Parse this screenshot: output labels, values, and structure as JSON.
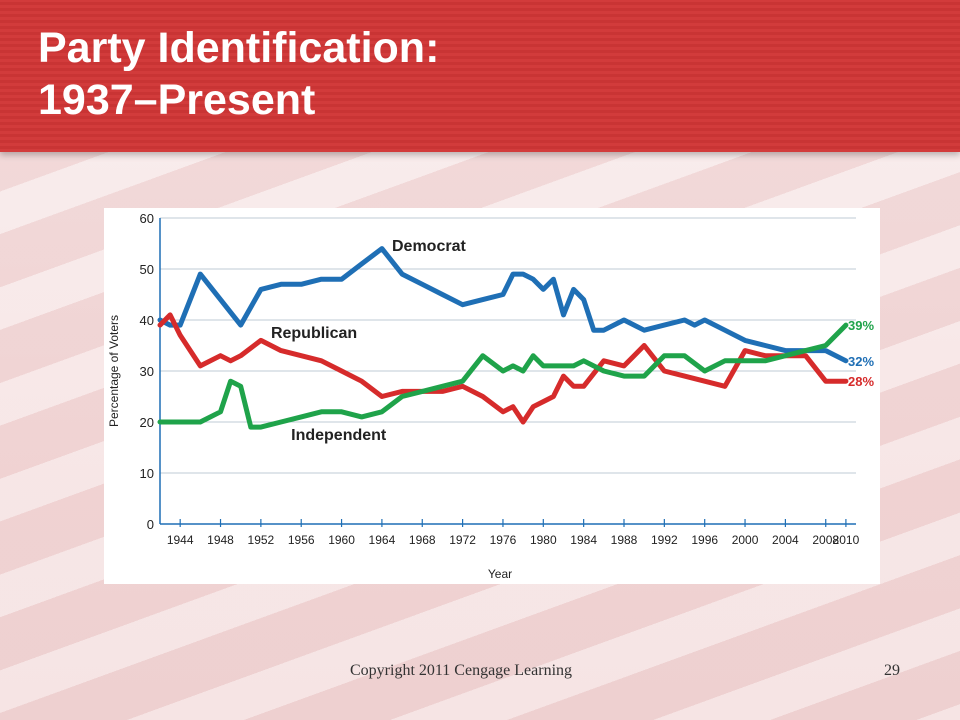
{
  "slide": {
    "title_line1": "Party Identification:",
    "title_line2": "1937–Present",
    "copyright": "Copyright 2011 Cengage Learning",
    "page_number": "29",
    "header_color": "#cc3636"
  },
  "chart_data": {
    "type": "line",
    "title": "",
    "xlabel": "Year",
    "ylabel": "Percentage of Voters",
    "xlim": [
      1942,
      2011
    ],
    "ylim": [
      0,
      60
    ],
    "x_ticks": [
      "1944",
      "1948",
      "1952",
      "1956",
      "1960",
      "1964",
      "1968",
      "1972",
      "1976",
      "1980",
      "1984",
      "1988",
      "1992",
      "1996",
      "2000",
      "2004",
      "2008",
      "2010"
    ],
    "y_ticks": [
      0,
      10,
      20,
      30,
      40,
      50,
      60
    ],
    "grid": true,
    "series": [
      {
        "name": "Democrat",
        "color": "#1f6fb5",
        "end_label": "32%",
        "x": [
          1942,
          1943,
          1944,
          1946,
          1948,
          1950,
          1952,
          1954,
          1956,
          1958,
          1960,
          1962,
          1964,
          1966,
          1968,
          1970,
          1972,
          1974,
          1976,
          1977,
          1978,
          1979,
          1980,
          1981,
          1982,
          1983,
          1984,
          1985,
          1986,
          1988,
          1990,
          1992,
          1994,
          1995,
          1996,
          1998,
          2000,
          2002,
          2004,
          2006,
          2008,
          2010
        ],
        "y": [
          40,
          39,
          39,
          49,
          44,
          39,
          46,
          47,
          47,
          48,
          48,
          51,
          54,
          49,
          47,
          45,
          43,
          44,
          45,
          49,
          49,
          48,
          46,
          48,
          41,
          46,
          44,
          38,
          38,
          40,
          38,
          39,
          40,
          39,
          40,
          38,
          36,
          35,
          34,
          34,
          34,
          32
        ]
      },
      {
        "name": "Republican",
        "color": "#d62b2b",
        "end_label": "28%",
        "x": [
          1942,
          1943,
          1944,
          1946,
          1948,
          1949,
          1950,
          1952,
          1954,
          1956,
          1958,
          1960,
          1962,
          1964,
          1966,
          1968,
          1970,
          1972,
          1974,
          1976,
          1977,
          1978,
          1979,
          1980,
          1981,
          1982,
          1983,
          1984,
          1986,
          1988,
          1990,
          1992,
          1994,
          1996,
          1998,
          2000,
          2002,
          2004,
          2006,
          2008,
          2010
        ],
        "y": [
          39,
          41,
          37,
          31,
          33,
          32,
          33,
          36,
          34,
          33,
          32,
          30,
          28,
          25,
          26,
          26,
          26,
          27,
          25,
          22,
          23,
          20,
          23,
          24,
          25,
          29,
          27,
          27,
          32,
          31,
          35,
          30,
          29,
          28,
          27,
          34,
          33,
          33,
          33,
          28,
          28
        ]
      },
      {
        "name": "Independent",
        "color": "#1fa34a",
        "end_label": "39%",
        "x": [
          1942,
          1944,
          1946,
          1948,
          1949,
          1950,
          1951,
          1952,
          1954,
          1956,
          1958,
          1960,
          1962,
          1964,
          1966,
          1968,
          1970,
          1972,
          1974,
          1976,
          1977,
          1978,
          1979,
          1980,
          1981,
          1982,
          1983,
          1984,
          1986,
          1988,
          1990,
          1992,
          1994,
          1996,
          1998,
          2000,
          2002,
          2004,
          2006,
          2008,
          2010
        ],
        "y": [
          20,
          20,
          20,
          22,
          28,
          27,
          19,
          19,
          20,
          21,
          22,
          22,
          21,
          22,
          25,
          26,
          27,
          28,
          33,
          30,
          31,
          30,
          33,
          31,
          31,
          31,
          31,
          32,
          30,
          29,
          29,
          33,
          33,
          30,
          32,
          32,
          32,
          33,
          34,
          35,
          39
        ]
      }
    ],
    "annotations": [
      {
        "text": "Democrat",
        "series": "Democrat"
      },
      {
        "text": "Republican",
        "series": "Republican"
      },
      {
        "text": "Independent",
        "series": "Independent"
      }
    ]
  }
}
